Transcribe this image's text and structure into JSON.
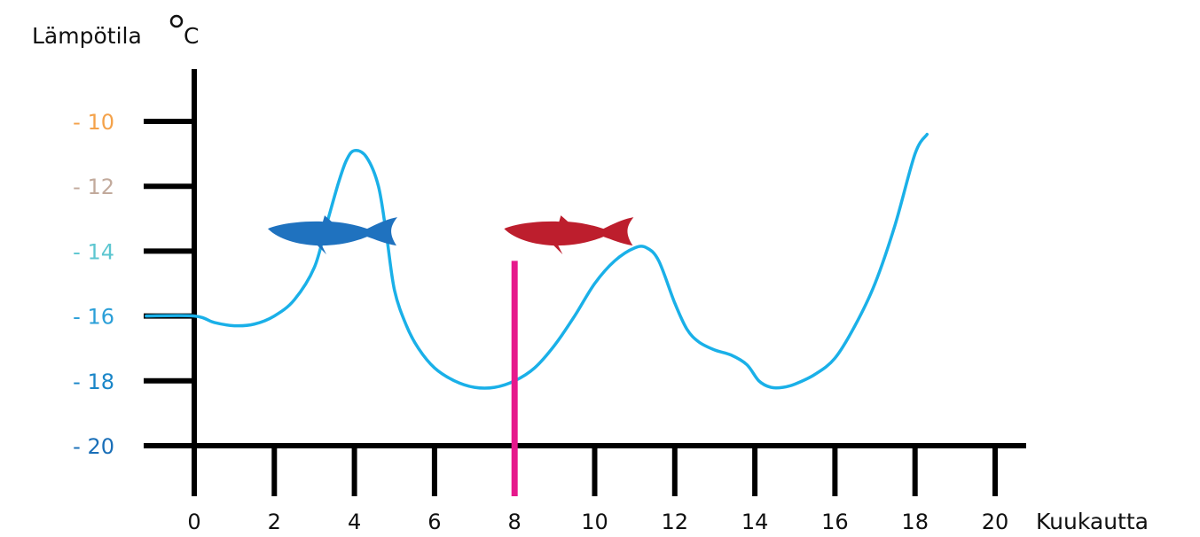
{
  "chart_data": {
    "type": "line",
    "ylabel": "Lämpötila",
    "ylabel_unit": "°C",
    "xlabel": "Kuukautta",
    "xlim": [
      0,
      20
    ],
    "ylim": [
      -20,
      -8.5
    ],
    "x_ticks": [
      "0",
      "2",
      "4",
      "6",
      "8",
      "10",
      "12",
      "14",
      "16",
      "18",
      "20"
    ],
    "y_ticks": [
      {
        "value": -10,
        "label": "- 10",
        "color": "#f4a24a"
      },
      {
        "value": -12,
        "label": "- 12",
        "color": "#c2aa9c"
      },
      {
        "value": -14,
        "label": "- 14",
        "color": "#5cc6d0"
      },
      {
        "value": -16,
        "label": "- 16",
        "color": "#2b9fd8"
      },
      {
        "value": -18,
        "label": "- 18",
        "color": "#1a86c8"
      },
      {
        "value": -20,
        "label": "- 20",
        "color": "#1a6fb8"
      }
    ],
    "series": [
      {
        "color": "#1ab0e8",
        "x": [
          -1.2,
          0,
          0.5,
          1,
          1.5,
          2,
          2.5,
          3,
          3.3,
          3.6,
          3.8,
          4.0,
          4.3,
          4.6,
          4.8,
          5.0,
          5.3,
          5.6,
          6.0,
          6.5,
          7.0,
          7.5,
          8.0,
          8.5,
          9.0,
          9.5,
          10.0,
          10.5,
          11.0,
          11.3,
          11.6,
          12.0,
          12.3,
          12.6,
          13.0,
          13.4,
          13.8,
          14.1,
          14.4,
          14.7,
          15.0,
          15.5,
          16.0,
          16.5,
          17.0,
          17.5,
          18.0,
          18.3
        ],
        "y": [
          -16,
          -16,
          -16.2,
          -16.3,
          -16.25,
          -16.0,
          -15.5,
          -14.5,
          -13.2,
          -11.9,
          -11.2,
          -10.9,
          -11.1,
          -12.0,
          -13.5,
          -15.2,
          -16.3,
          -17.0,
          -17.6,
          -18.0,
          -18.2,
          -18.2,
          -18.0,
          -17.6,
          -16.9,
          -16.0,
          -15.0,
          -14.3,
          -13.9,
          -13.9,
          -14.3,
          -15.6,
          -16.4,
          -16.8,
          -17.05,
          -17.2,
          -17.5,
          -18.0,
          -18.2,
          -18.2,
          -18.1,
          -17.8,
          -17.3,
          -16.3,
          -15.0,
          -13.2,
          -11.0,
          -10.4
        ]
      }
    ],
    "marker": {
      "x": 8,
      "y_top": -14.3,
      "color": "#e6198c"
    },
    "fish": [
      {
        "icon": "fish-icon",
        "color": "#1f72bf",
        "x": 3.3,
        "y": -13.5,
        "facing": "left"
      },
      {
        "icon": "fish-icon",
        "color": "#bd1e2d",
        "x": 9.2,
        "y": -13.5,
        "facing": "left"
      }
    ],
    "axis_color": "#000000",
    "grid": false
  }
}
